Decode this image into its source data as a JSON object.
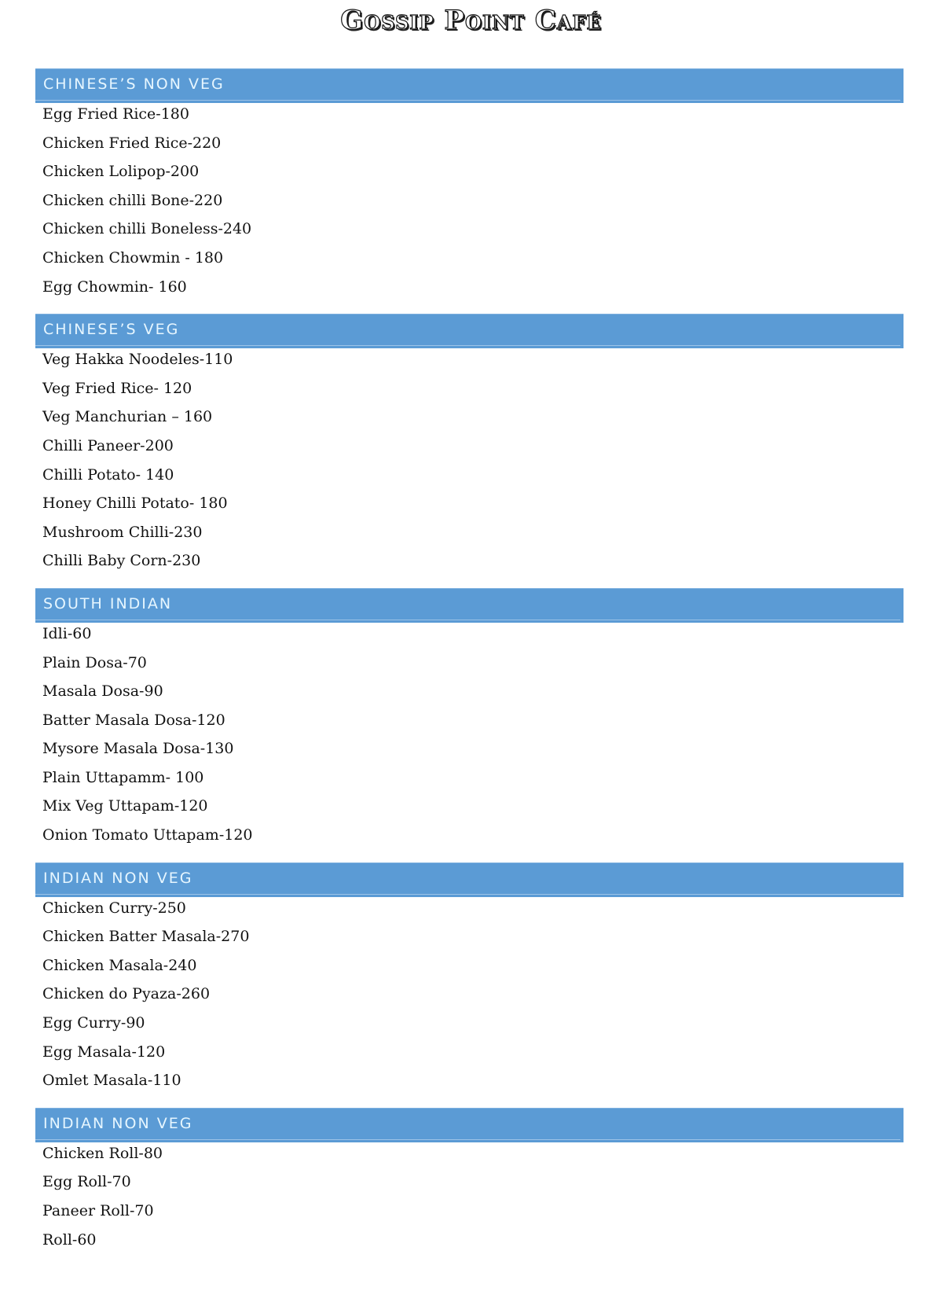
{
  "title": "Gossip Point Café",
  "sections": [
    {
      "heading": "CHINESE’S NON VEG",
      "items": [
        "Egg Fried Rice-180",
        "Chicken Fried Rice-220",
        "Chicken Lolipop-200",
        "Chicken chilli Bone-220",
        "Chicken chilli Boneless-240",
        "Chicken Chowmin - 180",
        "Egg Chowmin- 160"
      ]
    },
    {
      "heading": "CHINESE’S VEG",
      "items": [
        "Veg Hakka Noodeles-110",
        "Veg Fried Rice- 120",
        "Veg Manchurian – 160",
        "Chilli Paneer-200",
        "Chilli Potato- 140",
        "Honey Chilli Potato- 180",
        "Mushroom Chilli-230",
        "Chilli Baby Corn-230"
      ]
    },
    {
      "heading": "SOUTH INDIAN",
      "items": [
        "Idli-60",
        "Plain Dosa-70",
        "Masala Dosa-90",
        "Batter Masala Dosa-120",
        "Mysore Masala Dosa-130",
        "Plain Uttapamm- 100",
        "Mix Veg Uttapam-120",
        "Onion Tomato Uttapam-120"
      ]
    },
    {
      "heading": "INDIAN NON VEG",
      "items": [
        "Chicken Curry-250",
        "Chicken Batter Masala-270",
        "Chicken Masala-240",
        "Chicken do Pyaza-260",
        "Egg Curry-90",
        "Egg Masala-120",
        "Omlet Masala-110"
      ]
    },
    {
      "heading": "INDIAN NON VEG",
      "items": [
        "Chicken Roll-80",
        "Egg Roll-70",
        "Paneer Roll-70",
        "Roll-60"
      ]
    }
  ],
  "colors": {
    "header_bg": "#5b9bd5",
    "header_text": "#e6f6ff"
  }
}
